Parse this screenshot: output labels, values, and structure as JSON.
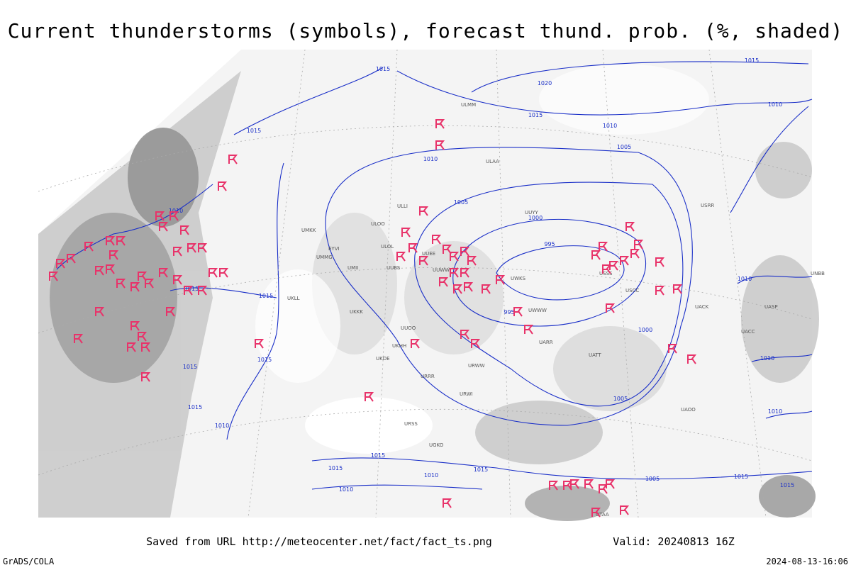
{
  "title": "Current thunderstorms (symbols), forecast thund. prob. (%, shaded)",
  "footer": {
    "url": "Saved from URL http://meteocenter.net/fact/fact_ts.png",
    "valid": "Valid: 20240813 16Z",
    "left": "GrADS/COLA",
    "right": "2024-08-13-16:06"
  },
  "isobar_labels": [
    1015,
    1020,
    1015,
    1010,
    1015,
    1010,
    1005,
    1015,
    1010,
    1005,
    1000,
    995,
    995,
    1000,
    1010,
    1015,
    1015,
    1015,
    1015,
    1015,
    1010,
    1005,
    1010,
    1010,
    1015,
    1015,
    1010,
    1010,
    1015,
    1005,
    1015,
    1010,
    1015
  ],
  "stations": [
    "ULMM",
    "ULAA",
    "ULOO",
    "ULOL",
    "UMKK",
    "EYVI",
    "UMMG",
    "UMII",
    "UUBS",
    "UUWW",
    "UUEE",
    "UKLL",
    "UKKK",
    "UUOO",
    "UKHH",
    "UKDE",
    "URRR",
    "URWI",
    "URSS",
    "UGKO",
    "UTAA",
    "UWWW",
    "UWKS",
    "URWW",
    "UARR",
    "USSS",
    "USCC",
    "UACK",
    "UASP",
    "UACC",
    "ULLI",
    "UUYY",
    "USRR",
    "UNBB",
    "UATT",
    "UAOO"
  ]
}
